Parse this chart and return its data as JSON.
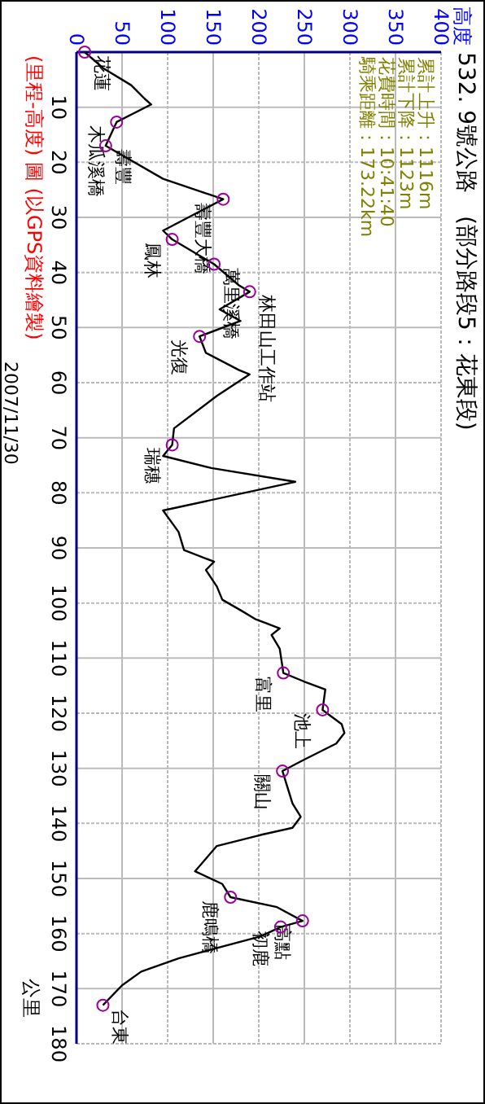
{
  "chart_data": {
    "type": "line",
    "title": "532. 9號公路　(部分路段5：花東段)",
    "subtitle": "(里程-高度) 圖 (以GPS資料繪製)",
    "ylabel": "公里",
    "series": [
      {
        "color": "#000000",
        "x": [
          9,
          30,
          60,
          75,
          82,
          44,
          32,
          95,
          161,
          95,
          105,
          151,
          178,
          190,
          157,
          180,
          135,
          142,
          178,
          190,
          154,
          107,
          105,
          95,
          148,
          240,
          95,
          112,
          118,
          151,
          142,
          154,
          160,
          181,
          196,
          223,
          214,
          223,
          227,
          249,
          273,
          270,
          291,
          294,
          285,
          249,
          226,
          237,
          246,
          237,
          202,
          154,
          130,
          160,
          169,
          220,
          248,
          224,
          202,
          112,
          71,
          50,
          29
        ],
        "values": [
          0,
          3,
          6,
          8.5,
          9.5,
          12.7,
          17,
          23,
          26.7,
          32.4,
          34,
          38.5,
          42.3,
          43.5,
          46.7,
          48.8,
          51.6,
          54.6,
          57.7,
          58.5,
          62.4,
          68.3,
          71.3,
          73.3,
          75.5,
          78,
          83.2,
          87.1,
          90.4,
          92.5,
          94,
          97,
          99.4,
          101.4,
          102.9,
          104.6,
          105.8,
          108.3,
          112.7,
          114.2,
          115.7,
          119.4,
          122,
          123.6,
          125.5,
          128.5,
          130.5,
          136.4,
          138.8,
          140.8,
          142.1,
          144.1,
          148.7,
          151,
          153.4,
          155.2,
          157.7,
          158.8,
          160.5,
          164.5,
          166.9,
          169.4,
          173
        ]
      }
    ],
    "xlim": [
      0,
      400
    ],
    "xticks": [
      0,
      50,
      100,
      150,
      200,
      250,
      300,
      350,
      400
    ],
    "ylim": [
      180,
      0
    ],
    "yticks": [
      10,
      20,
      30,
      40,
      50,
      60,
      70,
      80,
      90,
      100,
      110,
      120,
      130,
      140,
      150,
      160,
      170,
      180
    ],
    "grid": true,
    "annotations": [
      "高度",
      "累計上升：1116m",
      "累計下降：1123m",
      "花費時間：10:41:40",
      "騎乘距離：173.22km",
      "2007/11/30",
      {
        "text": "花蓮",
        "x": 9,
        "y": 0
      },
      {
        "text": "木瓜溪橋",
        "x": 44,
        "y": 12.7
      },
      {
        "text": "壽豐",
        "x": 32,
        "y": 17
      },
      {
        "text": "壽豐大橋",
        "x": 161,
        "y": 26.7
      },
      {
        "text": "鳳林",
        "x": 105,
        "y": 34
      },
      {
        "text": "萬里溪橋",
        "x": 151,
        "y": 38.5
      },
      {
        "text": "林田山工作站",
        "x": 190,
        "y": 43.5
      },
      {
        "text": "光復",
        "x": 135,
        "y": 51.6
      },
      {
        "text": "瑞穗",
        "x": 105,
        "y": 71.3
      },
      {
        "text": "富里",
        "x": 227,
        "y": 112.7
      },
      {
        "text": "池上",
        "x": 270,
        "y": 119.4
      },
      {
        "text": "關山",
        "x": 226,
        "y": 130.5
      },
      {
        "text": "鹿鳴橋",
        "x": 169,
        "y": 153.4
      },
      {
        "text": "高點",
        "x": 248,
        "y": 157.7
      },
      {
        "text": "初鹿",
        "x": 224,
        "y": 158.8
      },
      {
        "text": "台東",
        "x": 29,
        "y": 173
      }
    ]
  }
}
